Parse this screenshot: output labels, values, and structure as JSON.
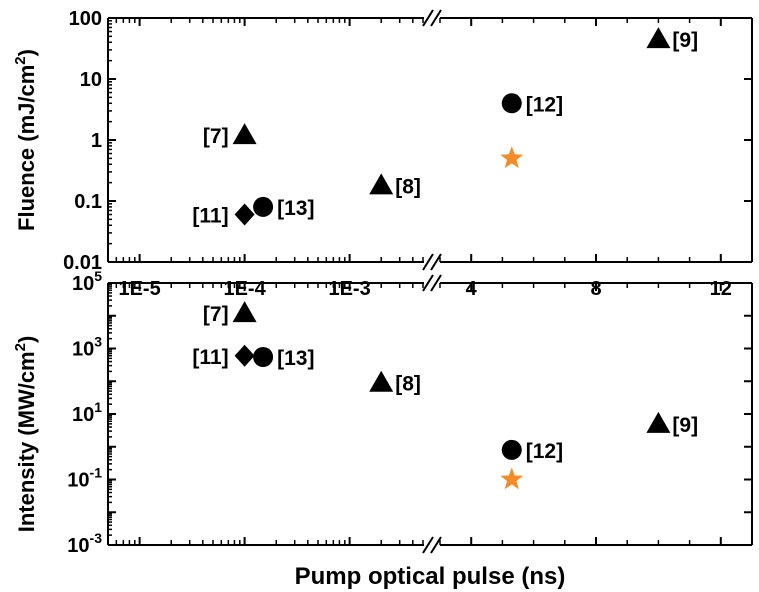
{
  "chart_data": [
    {
      "type": "scatter",
      "title": "",
      "xlabel": "Pump optical pulse (ns)",
      "ylabel": "Fluence (mJ/cm²)",
      "yscale": "log",
      "ylim": [
        0.01,
        100
      ],
      "yticks": [
        "0.01",
        "0.1",
        "1",
        "10",
        "100"
      ],
      "xaxis": {
        "broken": true,
        "left_segment": {
          "scale": "log",
          "range": [
            5e-06,
            0.005
          ],
          "ticks": [
            "1E-5",
            "1E-4",
            "1E-3"
          ]
        },
        "right_segment": {
          "scale": "linear",
          "range": [
            3,
            13
          ],
          "ticks": [
            "4",
            "8",
            "12"
          ]
        }
      },
      "points": [
        {
          "label": "[7]",
          "marker": "triangle",
          "color": "#000000",
          "x": 0.0001,
          "y": 1.2
        },
        {
          "label": "[11]",
          "marker": "diamond",
          "color": "#000000",
          "x": 0.0001,
          "y": 0.06
        },
        {
          "label": "[13]",
          "marker": "circle",
          "color": "#000000",
          "x": 0.00015,
          "y": 0.08
        },
        {
          "label": "[8]",
          "marker": "triangle",
          "color": "#000000",
          "x": 0.002,
          "y": 0.18
        },
        {
          "label": "[12]",
          "marker": "circle",
          "color": "#000000",
          "x": 5.3,
          "y": 4
        },
        {
          "label": "",
          "marker": "star",
          "color": "#f28c28",
          "x": 5.3,
          "y": 0.5
        },
        {
          "label": "[9]",
          "marker": "triangle",
          "color": "#000000",
          "x": 10,
          "y": 45
        }
      ]
    },
    {
      "type": "scatter",
      "title": "",
      "xlabel": "Pump optical pulse (ns)",
      "ylabel": "Intensity (MW/cm²)",
      "yscale": "log",
      "ylim": [
        0.001,
        100000
      ],
      "yticks": [
        {
          "base": "10",
          "exp": "5"
        },
        {
          "base": "10",
          "exp": "3"
        },
        {
          "base": "10",
          "exp": "1"
        },
        {
          "base": "10",
          "exp": "-1"
        },
        {
          "base": "10",
          "exp": "-3"
        }
      ],
      "xaxis": {
        "broken": true,
        "left_segment": {
          "scale": "log",
          "range": [
            5e-06,
            0.005
          ],
          "ticks": [
            "1E-5",
            "1E-4",
            "1E-3"
          ]
        },
        "right_segment": {
          "scale": "linear",
          "range": [
            3,
            13
          ],
          "ticks": [
            "4",
            "8",
            "12"
          ]
        }
      },
      "points": [
        {
          "label": "[7]",
          "marker": "triangle",
          "color": "#000000",
          "x": 0.0001,
          "y": 12000
        },
        {
          "label": "[11]",
          "marker": "diamond",
          "color": "#000000",
          "x": 0.0001,
          "y": 600
        },
        {
          "label": "[13]",
          "marker": "circle",
          "color": "#000000",
          "x": 0.00015,
          "y": 550
        },
        {
          "label": "[8]",
          "marker": "triangle",
          "color": "#000000",
          "x": 0.002,
          "y": 90
        },
        {
          "label": "[12]",
          "marker": "circle",
          "color": "#000000",
          "x": 5.3,
          "y": 0.8
        },
        {
          "label": "",
          "marker": "star",
          "color": "#f28c28",
          "x": 5.3,
          "y": 0.1
        },
        {
          "label": "[9]",
          "marker": "triangle",
          "color": "#000000",
          "x": 10,
          "y": 5
        }
      ]
    }
  ]
}
